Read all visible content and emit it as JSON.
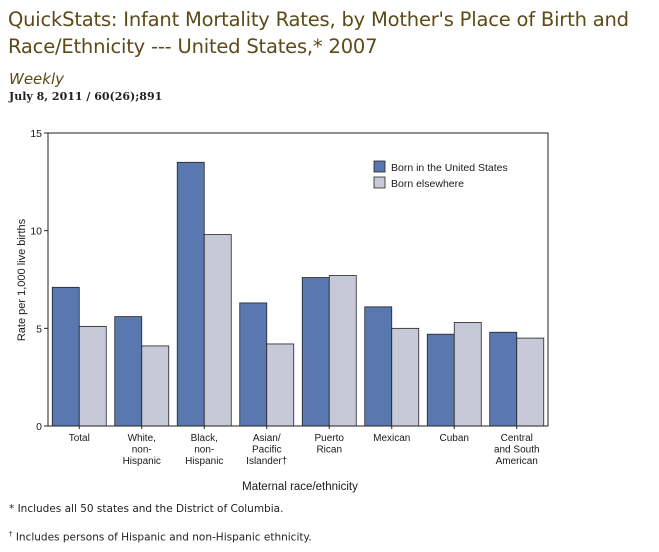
{
  "header": {
    "title": "QuickStats: Infant Mortality Rates, by Mother's Place of Birth and Race/Ethnicity --- United States,* 2007",
    "publication": "Weekly",
    "citation": "July 8, 2011 / 60(26);891"
  },
  "colors": {
    "born_us": "#5a78b0",
    "born_elsewhere": "#c8c9d8",
    "axis": "#222222"
  },
  "chart_data": {
    "type": "bar",
    "title": "",
    "xlabel": "Maternal race/ethnicity",
    "ylabel": "Rate per 1,000 live births",
    "ylim": [
      0,
      15
    ],
    "yticks": [
      "0",
      "5",
      "10",
      "15"
    ],
    "categories": [
      [
        "Total"
      ],
      [
        "White,",
        "non-",
        "Hispanic"
      ],
      [
        "Black,",
        "non-",
        "Hispanic"
      ],
      [
        "Asian/",
        "Pacific",
        "Islander†"
      ],
      [
        "Puerto",
        "Rican"
      ],
      [
        "Mexican"
      ],
      [
        "Cuban"
      ],
      [
        "Central",
        "and South",
        "American"
      ]
    ],
    "series": [
      {
        "name": "Born in the United States",
        "values": [
          7.1,
          5.6,
          13.5,
          6.3,
          7.6,
          6.1,
          4.7,
          4.8
        ]
      },
      {
        "name": "Born elsewhere",
        "values": [
          5.1,
          4.1,
          9.8,
          4.2,
          7.7,
          5.0,
          5.3,
          4.5
        ]
      }
    ],
    "legend": "top-right",
    "grid": false
  },
  "footnotes": {
    "note1": "* Includes all 50 states and the District of Columbia.",
    "note2_mark": "†",
    "note2": " Includes persons of Hispanic and non-Hispanic ethnicity."
  }
}
